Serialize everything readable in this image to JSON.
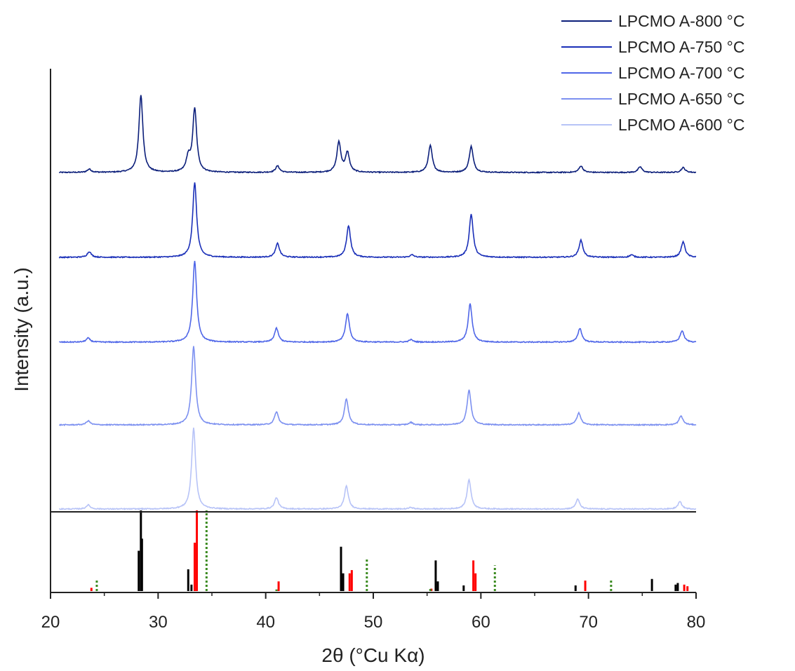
{
  "chart_data": {
    "type": "line",
    "xlabel": "2θ (°Cu Kα)",
    "ylabel": "Intensity (a.u.)",
    "xlim": [
      20,
      80
    ],
    "xticks": [
      "20",
      "30",
      "40",
      "50",
      "60",
      "70",
      "80"
    ],
    "y_ticks_shown": false,
    "legend_position": "top-right",
    "series": [
      {
        "name": "LPCMO A-800 °C",
        "color": "#0b1e7a",
        "peaks": [
          [
            23.6,
            0.04
          ],
          [
            28.4,
            0.95
          ],
          [
            32.8,
            0.17
          ],
          [
            33.4,
            0.78
          ],
          [
            41.1,
            0.08
          ],
          [
            46.8,
            0.37
          ],
          [
            47.6,
            0.24
          ],
          [
            55.3,
            0.33
          ],
          [
            59.1,
            0.32
          ],
          [
            69.3,
            0.08
          ],
          [
            74.8,
            0.07
          ],
          [
            78.8,
            0.06
          ]
        ]
      },
      {
        "name": "LPCMO A-750 °C",
        "color": "#1a2fb8",
        "peaks": [
          [
            23.6,
            0.07
          ],
          [
            33.4,
            0.92
          ],
          [
            41.1,
            0.17
          ],
          [
            47.7,
            0.39
          ],
          [
            53.6,
            0.03
          ],
          [
            59.1,
            0.53
          ],
          [
            69.3,
            0.21
          ],
          [
            74.0,
            0.03
          ],
          [
            78.8,
            0.19
          ]
        ]
      },
      {
        "name": "LPCMO A-700 °C",
        "color": "#4f66e8",
        "peaks": [
          [
            23.5,
            0.05
          ],
          [
            33.4,
            1.0
          ],
          [
            41.0,
            0.17
          ],
          [
            47.6,
            0.35
          ],
          [
            53.5,
            0.03
          ],
          [
            59.0,
            0.47
          ],
          [
            69.2,
            0.17
          ],
          [
            78.7,
            0.14
          ]
        ]
      },
      {
        "name": "LPCMO A-650 °C",
        "color": "#7c90f0",
        "peaks": [
          [
            23.5,
            0.05
          ],
          [
            33.3,
            0.97
          ],
          [
            41.0,
            0.16
          ],
          [
            47.5,
            0.32
          ],
          [
            53.5,
            0.03
          ],
          [
            58.9,
            0.43
          ],
          [
            69.1,
            0.15
          ],
          [
            78.6,
            0.11
          ]
        ]
      },
      {
        "name": "LPCMO A-600 °C",
        "color": "#b7c3f7",
        "peaks": [
          [
            23.5,
            0.05
          ],
          [
            33.3,
            1.0
          ],
          [
            41.0,
            0.14
          ],
          [
            47.5,
            0.28
          ],
          [
            53.5,
            0.02
          ],
          [
            58.9,
            0.36
          ],
          [
            69.0,
            0.12
          ],
          [
            78.5,
            0.09
          ]
        ]
      }
    ],
    "reference_patterns": [
      {
        "color": "#000000",
        "style": "solid",
        "sticks": [
          [
            28.2,
            0.5
          ],
          [
            28.4,
            1.0
          ],
          [
            28.5,
            0.65
          ],
          [
            32.8,
            0.27
          ],
          [
            33.1,
            0.08
          ],
          [
            47.0,
            0.55
          ],
          [
            47.2,
            0.22
          ],
          [
            55.8,
            0.38
          ],
          [
            56.0,
            0.12
          ],
          [
            58.4,
            0.07
          ],
          [
            68.8,
            0.07
          ],
          [
            75.9,
            0.15
          ],
          [
            78.1,
            0.08
          ],
          [
            78.3,
            0.1
          ]
        ]
      },
      {
        "color": "#ff0000",
        "style": "solid",
        "sticks": [
          [
            23.8,
            0.04
          ],
          [
            33.4,
            0.6
          ],
          [
            33.6,
            1.0
          ],
          [
            41.2,
            0.12
          ],
          [
            47.8,
            0.22
          ],
          [
            48.0,
            0.26
          ],
          [
            55.4,
            0.03
          ],
          [
            59.3,
            0.38
          ],
          [
            59.5,
            0.22
          ],
          [
            69.7,
            0.13
          ],
          [
            78.9,
            0.08
          ],
          [
            79.2,
            0.06
          ]
        ]
      },
      {
        "color": "#3a8a1f",
        "style": "dotted",
        "sticks": [
          [
            24.3,
            0.14
          ],
          [
            34.5,
            1.0
          ],
          [
            41.0,
            0.02
          ],
          [
            49.4,
            0.41
          ],
          [
            55.3,
            0.05
          ],
          [
            61.3,
            0.32
          ],
          [
            72.1,
            0.13
          ]
        ]
      }
    ]
  }
}
